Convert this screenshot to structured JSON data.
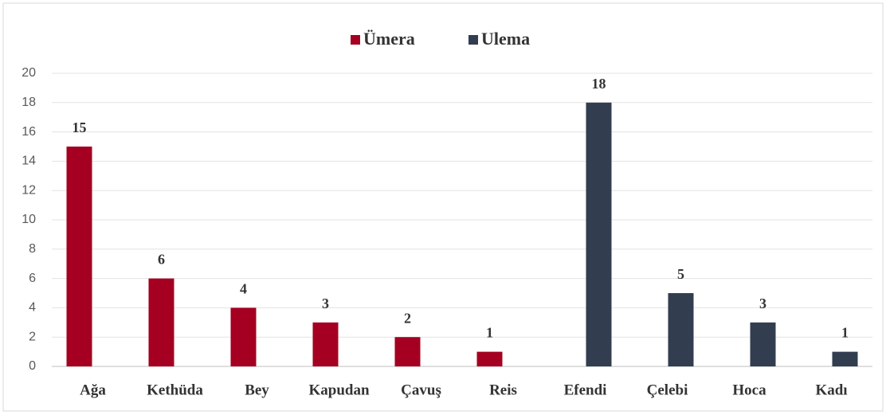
{
  "chart_data": {
    "type": "bar",
    "categories": [
      "Ağa",
      "Kethüda",
      "Bey",
      "Kapudan",
      "Çavuş",
      "Reis",
      "Efendi",
      "Çelebi",
      "Hoca",
      "Kadı"
    ],
    "series": [
      {
        "name": "Ümera",
        "color": "#a50021",
        "values": [
          15,
          6,
          4,
          3,
          2,
          1,
          null,
          null,
          null,
          null
        ]
      },
      {
        "name": "Ulema",
        "color": "#323d50",
        "values": [
          null,
          null,
          null,
          null,
          null,
          null,
          18,
          5,
          3,
          1
        ]
      }
    ],
    "ylim": [
      0,
      20
    ],
    "yticks": [
      0,
      2,
      4,
      6,
      8,
      10,
      12,
      14,
      16,
      18,
      20
    ],
    "grid": true,
    "legend": "top"
  }
}
